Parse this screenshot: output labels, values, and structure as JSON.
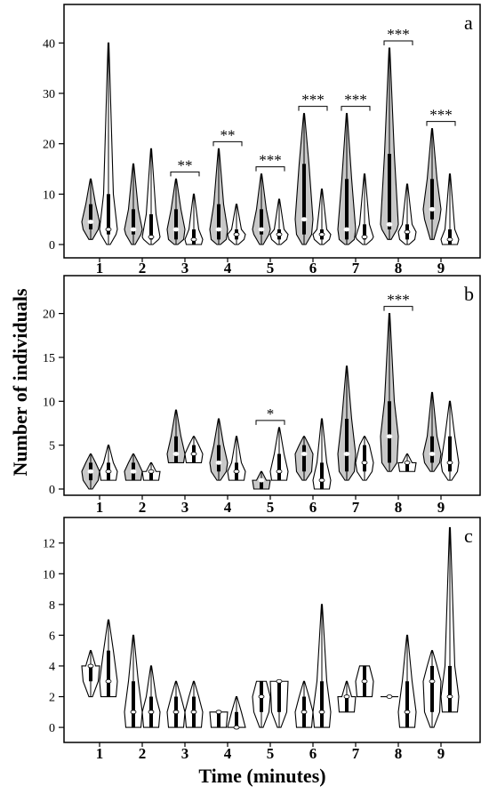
{
  "figure": {
    "ylabel": "Number of individuals",
    "xlabel": "Time (minutes)"
  },
  "chart_data": [
    {
      "type": "violin",
      "panel_label": "a",
      "ylim": [
        0,
        45
      ],
      "yticks": [
        "0",
        "10",
        "20",
        "30",
        "40"
      ],
      "categories": [
        "1",
        "2",
        "3",
        "4",
        "5",
        "6",
        "7",
        "8",
        "9"
      ],
      "series": [
        {
          "style": "gray",
          "min": [
            1,
            0,
            0,
            0,
            0,
            0,
            0,
            1,
            1
          ],
          "q1": [
            3,
            2,
            1,
            1,
            2,
            2,
            1,
            3,
            5
          ],
          "median": [
            4.5,
            3,
            3,
            3,
            3,
            5,
            3,
            4,
            7
          ],
          "q3": [
            8,
            7,
            7,
            8,
            7,
            16,
            13,
            18,
            13
          ],
          "max": [
            13,
            16,
            13,
            19,
            14,
            26,
            26,
            39,
            23
          ]
        },
        {
          "style": "white",
          "min": [
            0,
            0,
            0,
            0,
            0,
            0,
            0,
            0,
            0
          ],
          "q1": [
            2,
            1,
            0,
            1,
            1,
            1,
            1,
            1,
            0
          ],
          "median": [
            3,
            1.5,
            1,
            2,
            2,
            2,
            1.5,
            2.5,
            1
          ],
          "q3": [
            10,
            6,
            3,
            3,
            3,
            3,
            4,
            4,
            3
          ],
          "max": [
            40,
            19,
            10,
            8,
            9,
            11,
            14,
            12,
            14
          ]
        }
      ],
      "significance": [
        {
          "category": "3",
          "label": "**"
        },
        {
          "category": "4",
          "label": "**"
        },
        {
          "category": "5",
          "label": "***"
        },
        {
          "category": "6",
          "label": "***"
        },
        {
          "category": "7",
          "label": "***"
        },
        {
          "category": "8",
          "label": "***"
        },
        {
          "category": "9",
          "label": "***"
        }
      ]
    },
    {
      "type": "violin",
      "panel_label": "b",
      "ylim": [
        0,
        23
      ],
      "yticks": [
        "0",
        "5",
        "10",
        "15",
        "20"
      ],
      "categories": [
        "1",
        "2",
        "3",
        "4",
        "5",
        "6",
        "7",
        "8",
        "9"
      ],
      "series": [
        {
          "style": "gray",
          "min": [
            0,
            1,
            3,
            1,
            0,
            1,
            1,
            2,
            2
          ],
          "q1": [
            1,
            1,
            3,
            2,
            0,
            2,
            2,
            3,
            3
          ],
          "median": [
            2,
            2,
            4,
            3,
            1,
            4,
            4,
            6,
            4
          ],
          "q3": [
            3,
            3,
            6,
            5,
            1,
            5,
            8,
            10,
            6
          ],
          "max": [
            4,
            4,
            9,
            8,
            2,
            6,
            14,
            20,
            11
          ]
        },
        {
          "style": "white",
          "min": [
            1,
            1,
            3,
            1,
            1,
            0,
            1,
            2,
            1
          ],
          "q1": [
            1,
            1,
            3,
            1,
            1,
            0,
            2,
            2,
            2
          ],
          "median": [
            2,
            2,
            4,
            2,
            2,
            1,
            3,
            3,
            3
          ],
          "q3": [
            3,
            2,
            5,
            3,
            4,
            3,
            5,
            3,
            6
          ],
          "max": [
            5,
            3,
            6,
            6,
            7,
            8,
            6,
            4,
            10
          ]
        }
      ],
      "significance": [
        {
          "category": "5",
          "label": "*"
        },
        {
          "category": "8",
          "label": "***"
        }
      ]
    },
    {
      "type": "violin",
      "panel_label": "c",
      "ylim": [
        -0.4,
        13.2
      ],
      "yticks": [
        "0",
        "2",
        "4",
        "6",
        "8",
        "10",
        "12"
      ],
      "categories": [
        "1",
        "2",
        "3",
        "4",
        "5",
        "6",
        "7",
        "8",
        "9"
      ],
      "series": [
        {
          "style": "white",
          "min": [
            2,
            0,
            0,
            0,
            0,
            0,
            1,
            2,
            0
          ],
          "q1": [
            3,
            0,
            0,
            0,
            1,
            0,
            1,
            2,
            1
          ],
          "median": [
            4,
            1,
            1,
            1,
            2,
            1,
            2,
            2,
            3
          ],
          "q3": [
            4,
            3,
            2,
            1,
            3,
            2,
            2,
            2,
            4
          ],
          "max": [
            5,
            6,
            3,
            1,
            3,
            3,
            3,
            2,
            5
          ]
        },
        {
          "style": "white",
          "min": [
            2,
            0,
            0,
            0,
            0,
            0,
            2,
            0,
            1
          ],
          "q1": [
            2,
            0,
            0,
            0,
            1,
            0,
            2,
            0,
            1
          ],
          "median": [
            3,
            1,
            1,
            0,
            3,
            1,
            3,
            1,
            2
          ],
          "q3": [
            5,
            2,
            2,
            1,
            3,
            3,
            4,
            3,
            4
          ],
          "max": [
            7,
            4,
            3,
            2,
            3,
            8,
            4,
            6,
            13
          ]
        }
      ],
      "significance": []
    }
  ]
}
